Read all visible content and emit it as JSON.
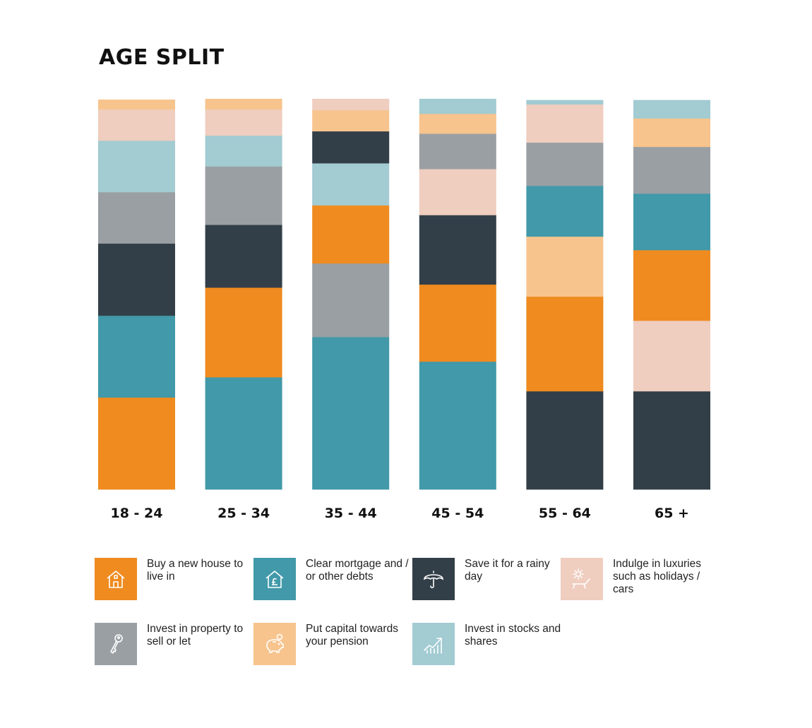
{
  "title": "AGE SPLIT",
  "colors": {
    "orange": "#ef8b1f",
    "teal": "#4199a9",
    "dark": "#323f48",
    "peach": "#efcdbf",
    "grey": "#9a9fa4",
    "light_orange": "#f7c48d",
    "light_blue": "#a2cbd2"
  },
  "chart_data": {
    "type": "bar",
    "stacked": true,
    "normalized": true,
    "categories": [
      "18 - 24",
      "25 - 34",
      "35 - 44",
      "45 - 54",
      "55 - 64",
      "65 +"
    ],
    "ylim": [
      0,
      100
    ],
    "grid": false,
    "legend_position": "bottom",
    "series": [
      {
        "name": "Buy a new house to live in",
        "key": "orange",
        "values": [
          23.6,
          23.0,
          14.9,
          19.8,
          24.3,
          18.1
        ]
      },
      {
        "name": "Clear mortgage and / or other debts",
        "key": "teal",
        "values": [
          21.0,
          28.8,
          39.1,
          32.8,
          13.0,
          14.5
        ]
      },
      {
        "name": "Save it for a rainy day",
        "key": "dark",
        "values": [
          18.5,
          16.1,
          8.2,
          17.8,
          25.2,
          25.2
        ]
      },
      {
        "name": "Indulge in luxuries such as holidays / cars",
        "key": "peach",
        "values": [
          8.0,
          6.7,
          2.9,
          11.8,
          9.8,
          18.1
        ]
      },
      {
        "name": "Invest in property to sell or let",
        "key": "grey",
        "values": [
          13.2,
          15.0,
          18.9,
          9.1,
          11.1,
          12.0
        ]
      },
      {
        "name": "Put capital towards your pension",
        "key": "light_orange",
        "values": [
          2.5,
          2.7,
          5.4,
          5.1,
          15.4,
          7.3
        ]
      },
      {
        "name": "Invest in stocks and shares",
        "key": "light_blue",
        "values": [
          13.2,
          7.9,
          10.8,
          3.8,
          1.1,
          4.7
        ]
      }
    ],
    "stack_order_by_category": [
      [
        "orange",
        "teal",
        "dark",
        "grey",
        "light_blue",
        "peach",
        "light_orange"
      ],
      [
        "teal",
        "orange",
        "dark",
        "grey",
        "light_blue",
        "peach",
        "light_orange"
      ],
      [
        "teal",
        "grey",
        "orange",
        "light_blue",
        "dark",
        "light_orange",
        "peach"
      ],
      [
        "teal",
        "orange",
        "dark",
        "peach",
        "grey",
        "light_orange",
        "light_blue"
      ],
      [
        "dark",
        "orange",
        "light_orange",
        "teal",
        "grey",
        "peach",
        "light_blue"
      ],
      [
        "dark",
        "peach",
        "orange",
        "teal",
        "grey",
        "light_orange",
        "light_blue"
      ]
    ]
  },
  "legend": [
    {
      "key": "orange",
      "label": "Buy a new house to live in",
      "icon": "house-icon"
    },
    {
      "key": "teal",
      "label": "Clear mortgage and / or other debts",
      "icon": "house-pound-icon"
    },
    {
      "key": "dark",
      "label": "Save it for a rainy day",
      "icon": "umbrella-icon"
    },
    {
      "key": "peach",
      "label": "Indulge in luxuries such as holidays / cars",
      "icon": "sun-lounger-icon"
    },
    {
      "key": "grey",
      "label": "Invest in property to sell or let",
      "icon": "key-icon"
    },
    {
      "key": "light_orange",
      "label": "Put capital towards your pension",
      "icon": "piggy-bank-icon"
    },
    {
      "key": "light_blue",
      "label": "Invest in stocks and shares",
      "icon": "growth-chart-icon"
    }
  ]
}
